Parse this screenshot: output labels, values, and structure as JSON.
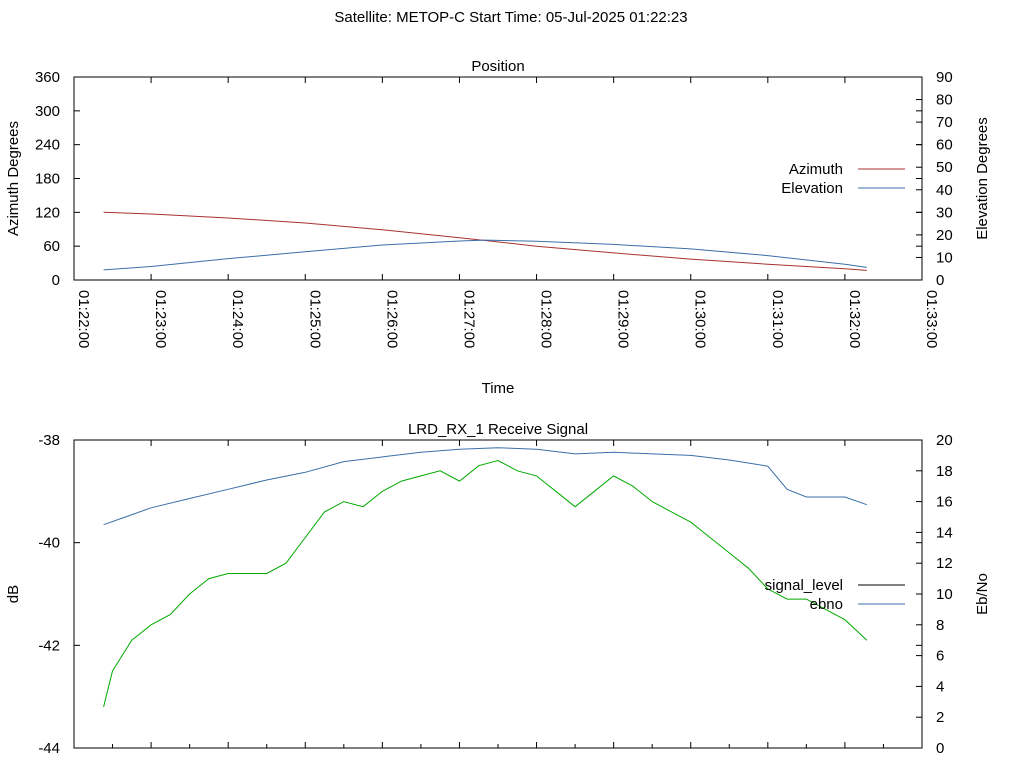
{
  "suptitle": "Satellite: METOP-C    Start Time: 05-Jul-2025 01:22:23",
  "chart_data": [
    {
      "type": "line",
      "title": "Position",
      "xlabel": "Time",
      "ylabel_left": "Azimuth Degrees",
      "ylabel_right": "Elevation Degrees",
      "xlim": [
        "01:22:00",
        "01:33:00"
      ],
      "xticks": [
        "01:22:00",
        "01:23:00",
        "01:24:00",
        "01:25:00",
        "01:26:00",
        "01:27:00",
        "01:28:00",
        "01:29:00",
        "01:30:00",
        "01:31:00",
        "01:32:00",
        "01:33:00"
      ],
      "ylim_left": [
        0,
        360
      ],
      "yticks_left": [
        0,
        60,
        120,
        180,
        240,
        300,
        360
      ],
      "ylim_right": [
        0,
        90
      ],
      "yticks_right": [
        0,
        10,
        20,
        30,
        40,
        50,
        60,
        70,
        80,
        90
      ],
      "grid": false,
      "legend_position": "right",
      "series": [
        {
          "name": "Azimuth",
          "axis": "left",
          "color": "#a83232",
          "x": [
            "01:22:23",
            "01:23:00",
            "01:24:00",
            "01:25:00",
            "01:26:00",
            "01:27:00",
            "01:27:20",
            "01:28:00",
            "01:29:00",
            "01:30:00",
            "01:31:00",
            "01:32:00",
            "01:32:17"
          ],
          "y": [
            120,
            117,
            110,
            101,
            89,
            75,
            70,
            60,
            48,
            37,
            28,
            20,
            17
          ]
        },
        {
          "name": "Elevation",
          "axis": "right",
          "color": "#3a6fa8",
          "x": [
            "01:22:23",
            "01:23:00",
            "01:24:00",
            "01:25:00",
            "01:26:00",
            "01:27:00",
            "01:27:20",
            "01:28:00",
            "01:29:00",
            "01:30:00",
            "01:31:00",
            "01:32:00",
            "01:32:17"
          ],
          "y": [
            4.5,
            6,
            9.5,
            12.5,
            15.5,
            17.3,
            17.7,
            17.2,
            15.8,
            13.8,
            10.8,
            7.0,
            5.6
          ]
        }
      ]
    },
    {
      "type": "line",
      "title": "LRD_RX_1 Receive Signal",
      "xlabel": "",
      "ylabel_left": "dB",
      "ylabel_right": "Eb/No",
      "xlim": [
        "01:22:00",
        "01:33:00"
      ],
      "ylim_left": [
        -44,
        -38
      ],
      "yticks_left": [
        -44,
        -42,
        -40,
        -38
      ],
      "ylim_right": [
        0,
        20
      ],
      "yticks_right": [
        0,
        2,
        4,
        6,
        8,
        10,
        12,
        14,
        16,
        18,
        20
      ],
      "grid": false,
      "legend_position": "right",
      "legend_entries": [
        {
          "name": "signal_level",
          "color": "#000000"
        },
        {
          "name": "ebno",
          "color": "#3a6fa8"
        }
      ],
      "series": [
        {
          "name": "signal_level",
          "axis": "left",
          "color": "#00aa00",
          "x": [
            "01:22:23",
            "01:22:30",
            "01:22:45",
            "01:23:00",
            "01:23:15",
            "01:23:30",
            "01:23:45",
            "01:24:00",
            "01:24:15",
            "01:24:30",
            "01:24:45",
            "01:25:00",
            "01:25:15",
            "01:25:30",
            "01:25:45",
            "01:26:00",
            "01:26:15",
            "01:26:30",
            "01:26:45",
            "01:27:00",
            "01:27:15",
            "01:27:30",
            "01:27:45",
            "01:28:00",
            "01:28:15",
            "01:28:30",
            "01:28:45",
            "01:29:00",
            "01:29:15",
            "01:29:30",
            "01:29:45",
            "01:30:00",
            "01:30:15",
            "01:30:30",
            "01:30:45",
            "01:31:00",
            "01:31:15",
            "01:31:30",
            "01:31:45",
            "01:32:00",
            "01:32:17"
          ],
          "y": [
            -43.2,
            -42.5,
            -41.9,
            -41.6,
            -41.4,
            -41.0,
            -40.7,
            -40.6,
            -40.6,
            -40.6,
            -40.4,
            -39.9,
            -39.4,
            -39.2,
            -39.3,
            -39.0,
            -38.8,
            -38.7,
            -38.6,
            -38.8,
            -38.5,
            -38.4,
            -38.6,
            -38.7,
            -39.0,
            -39.3,
            -39.0,
            -38.7,
            -38.9,
            -39.2,
            -39.4,
            -39.6,
            -39.9,
            -40.2,
            -40.5,
            -40.9,
            -41.1,
            -41.1,
            -41.3,
            -41.5,
            -41.9
          ]
        },
        {
          "name": "ebno",
          "axis": "right",
          "color": "#3a6fa8",
          "x": [
            "01:22:23",
            "01:22:40",
            "01:23:00",
            "01:23:30",
            "01:24:00",
            "01:24:30",
            "01:25:00",
            "01:25:30",
            "01:26:00",
            "01:26:30",
            "01:27:00",
            "01:27:30",
            "01:28:00",
            "01:28:30",
            "01:29:00",
            "01:29:30",
            "01:30:00",
            "01:30:30",
            "01:31:00",
            "01:31:15",
            "01:31:30",
            "01:32:00",
            "01:32:17"
          ],
          "y": [
            14.5,
            15.0,
            15.6,
            16.2,
            16.8,
            17.4,
            17.9,
            18.6,
            18.9,
            19.2,
            19.4,
            19.5,
            19.4,
            19.1,
            19.2,
            19.1,
            19.0,
            18.7,
            18.3,
            16.8,
            16.3,
            16.3,
            15.8
          ]
        }
      ]
    }
  ]
}
